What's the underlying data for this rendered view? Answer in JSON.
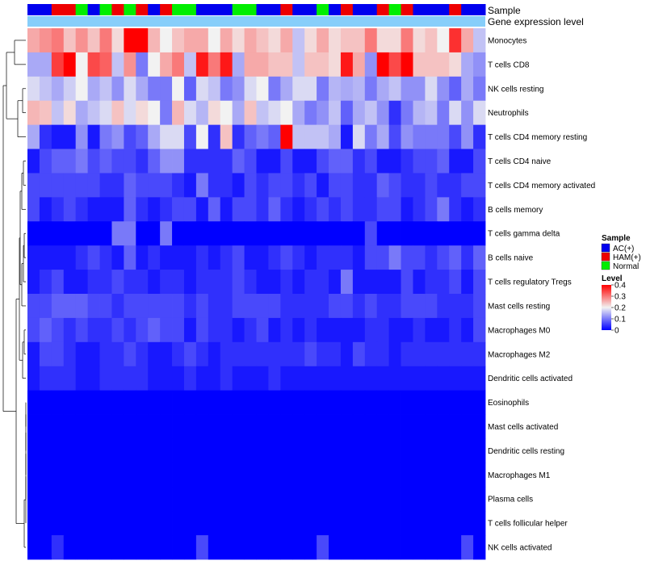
{
  "chart_data": {
    "type": "heatmap",
    "title": "",
    "columns": 38,
    "annotation_tracks": [
      {
        "name": "Sample",
        "label": "Sample"
      },
      {
        "name": "Gene expression level",
        "label": "Gene expression level"
      }
    ],
    "sample_groups": [
      {
        "name": "AC(+)",
        "color": "#0000EE"
      },
      {
        "name": "HAM(+)",
        "color": "#EE0000"
      },
      {
        "name": "Normal",
        "color": "#00EE00"
      }
    ],
    "sample_annotation": [
      "AC(+)",
      "AC(+)",
      "HAM(+)",
      "HAM(+)",
      "Normal",
      "AC(+)",
      "Normal",
      "HAM(+)",
      "Normal",
      "HAM(+)",
      "AC(+)",
      "HAM(+)",
      "Normal",
      "Normal",
      "AC(+)",
      "AC(+)",
      "AC(+)",
      "Normal",
      "Normal",
      "AC(+)",
      "AC(+)",
      "HAM(+)",
      "AC(+)",
      "AC(+)",
      "Normal",
      "AC(+)",
      "HAM(+)",
      "AC(+)",
      "AC(+)",
      "HAM(+)",
      "Normal",
      "HAM(+)",
      "AC(+)",
      "AC(+)",
      "AC(+)",
      "HAM(+)",
      "AC(+)",
      "AC(+)"
    ],
    "expression_annotation_color": "#87CEFA",
    "rows": [
      "Monocytes",
      "T cells CD8",
      "NK cells resting",
      "Neutrophils",
      "T cells CD4 memory resting",
      "T cells CD4 naive",
      "T cells CD4 memory activated",
      "B cells memory",
      "T cells gamma delta",
      "B cells naive",
      "T cells regulatory  Tregs",
      "Mast cells resting",
      "Macrophages M0",
      "Macrophages M2",
      "Dendritic cells activated",
      "Eosinophils",
      "Mast cells activated",
      "Dendritic cells resting",
      "Macrophages M1",
      "Plasma cells",
      "T cells follicular helper",
      "NK cells activated"
    ],
    "values": [
      [
        0.26,
        0.28,
        0.3,
        0.24,
        0.28,
        0.24,
        0.3,
        0.22,
        0.4,
        0.4,
        0.25,
        0.2,
        0.24,
        0.26,
        0.26,
        0.2,
        0.26,
        0.22,
        0.26,
        0.24,
        0.22,
        0.26,
        0.16,
        0.22,
        0.26,
        0.22,
        0.24,
        0.24,
        0.3,
        0.22,
        0.22,
        0.3,
        0.22,
        0.24,
        0.2,
        0.36,
        0.26,
        0.16
      ],
      [
        0.14,
        0.14,
        0.35,
        0.4,
        0.2,
        0.34,
        0.32,
        0.16,
        0.28,
        0.1,
        0.2,
        0.26,
        0.3,
        0.16,
        0.38,
        0.3,
        0.38,
        0.14,
        0.26,
        0.26,
        0.24,
        0.24,
        0.16,
        0.24,
        0.24,
        0.22,
        0.38,
        0.26,
        0.12,
        0.4,
        0.34,
        0.4,
        0.24,
        0.24,
        0.24,
        0.22,
        0.14,
        0.12
      ],
      [
        0.18,
        0.16,
        0.14,
        0.17,
        0.2,
        0.14,
        0.16,
        0.12,
        0.18,
        0.14,
        0.1,
        0.1,
        0.2,
        0.08,
        0.18,
        0.16,
        0.1,
        0.12,
        0.18,
        0.2,
        0.1,
        0.14,
        0.18,
        0.18,
        0.1,
        0.15,
        0.14,
        0.15,
        0.1,
        0.14,
        0.16,
        0.12,
        0.12,
        0.18,
        0.12,
        0.08,
        0.14,
        0.1
      ],
      [
        0.25,
        0.24,
        0.16,
        0.22,
        0.14,
        0.16,
        0.18,
        0.24,
        0.18,
        0.22,
        0.2,
        0.1,
        0.25,
        0.18,
        0.15,
        0.22,
        0.2,
        0.14,
        0.24,
        0.16,
        0.18,
        0.2,
        0.14,
        0.1,
        0.12,
        0.16,
        0.08,
        0.14,
        0.16,
        0.12,
        0.04,
        0.1,
        0.15,
        0.16,
        0.1,
        0.18,
        0.12,
        0.18
      ],
      [
        0.14,
        0.04,
        0.02,
        0.02,
        0.12,
        0.02,
        0.1,
        0.12,
        0.06,
        0.08,
        0.14,
        0.18,
        0.18,
        0.06,
        0.2,
        0.04,
        0.24,
        0.04,
        0.08,
        0.1,
        0.08,
        0.4,
        0.16,
        0.16,
        0.16,
        0.14,
        0.02,
        0.18,
        0.1,
        0.14,
        0.06,
        0.12,
        0.1,
        0.1,
        0.1,
        0.06,
        0.12,
        0.04
      ],
      [
        0.02,
        0.06,
        0.08,
        0.08,
        0.1,
        0.06,
        0.08,
        0.06,
        0.06,
        0.04,
        0.08,
        0.12,
        0.12,
        0.04,
        0.04,
        0.04,
        0.04,
        0.08,
        0.06,
        0.02,
        0.02,
        0.06,
        0.02,
        0.02,
        0.06,
        0.08,
        0.08,
        0.04,
        0.06,
        0.02,
        0.02,
        0.04,
        0.06,
        0.06,
        0.08,
        0.02,
        0.02,
        0.06
      ],
      [
        0.06,
        0.06,
        0.06,
        0.06,
        0.06,
        0.06,
        0.04,
        0.04,
        0.08,
        0.06,
        0.06,
        0.06,
        0.04,
        0.02,
        0.1,
        0.04,
        0.04,
        0.02,
        0.06,
        0.04,
        0.06,
        0.06,
        0.04,
        0.06,
        0.02,
        0.06,
        0.06,
        0.04,
        0.04,
        0.08,
        0.06,
        0.04,
        0.04,
        0.06,
        0.04,
        0.04,
        0.06,
        0.06
      ],
      [
        0.06,
        0.02,
        0.04,
        0.06,
        0.04,
        0.02,
        0.02,
        0.02,
        0.08,
        0.04,
        0.02,
        0.04,
        0.06,
        0.06,
        0.02,
        0.08,
        0.02,
        0.06,
        0.06,
        0.04,
        0.08,
        0.04,
        0.02,
        0.04,
        0.06,
        0.04,
        0.06,
        0.04,
        0.04,
        0.06,
        0.06,
        0.02,
        0.04,
        0.06,
        0.1,
        0.04,
        0.02,
        0.04
      ],
      [
        0.0,
        0.0,
        0.0,
        0.0,
        0.0,
        0.0,
        0.0,
        0.1,
        0.1,
        0.0,
        0.0,
        0.1,
        0.0,
        0.0,
        0.0,
        0.0,
        0.0,
        0.0,
        0.0,
        0.0,
        0.0,
        0.0,
        0.0,
        0.0,
        0.0,
        0.0,
        0.0,
        0.0,
        0.06,
        0.0,
        0.0,
        0.0,
        0.0,
        0.0,
        0.0,
        0.0,
        0.0,
        0.0
      ],
      [
        0.02,
        0.02,
        0.02,
        0.02,
        0.04,
        0.06,
        0.04,
        0.02,
        0.08,
        0.02,
        0.04,
        0.02,
        0.02,
        0.02,
        0.04,
        0.02,
        0.04,
        0.06,
        0.02,
        0.02,
        0.04,
        0.06,
        0.04,
        0.02,
        0.04,
        0.04,
        0.04,
        0.02,
        0.06,
        0.06,
        0.1,
        0.06,
        0.06,
        0.04,
        0.06,
        0.08,
        0.04,
        0.08
      ],
      [
        0.02,
        0.04,
        0.06,
        0.02,
        0.02,
        0.04,
        0.04,
        0.06,
        0.04,
        0.04,
        0.02,
        0.04,
        0.04,
        0.02,
        0.04,
        0.04,
        0.04,
        0.06,
        0.04,
        0.02,
        0.02,
        0.04,
        0.02,
        0.04,
        0.04,
        0.02,
        0.1,
        0.02,
        0.02,
        0.02,
        0.02,
        0.06,
        0.02,
        0.04,
        0.04,
        0.06,
        0.02,
        0.06
      ],
      [
        0.06,
        0.06,
        0.08,
        0.08,
        0.08,
        0.06,
        0.06,
        0.04,
        0.06,
        0.06,
        0.06,
        0.06,
        0.06,
        0.04,
        0.06,
        0.04,
        0.04,
        0.06,
        0.06,
        0.06,
        0.06,
        0.04,
        0.04,
        0.04,
        0.04,
        0.06,
        0.06,
        0.04,
        0.06,
        0.04,
        0.04,
        0.06,
        0.06,
        0.06,
        0.04,
        0.04,
        0.04,
        0.06
      ],
      [
        0.06,
        0.08,
        0.06,
        0.04,
        0.06,
        0.04,
        0.04,
        0.06,
        0.04,
        0.06,
        0.08,
        0.06,
        0.06,
        0.02,
        0.06,
        0.04,
        0.04,
        0.02,
        0.04,
        0.06,
        0.02,
        0.04,
        0.02,
        0.04,
        0.02,
        0.02,
        0.02,
        0.02,
        0.04,
        0.04,
        0.02,
        0.02,
        0.04,
        0.02,
        0.02,
        0.04,
        0.02,
        0.06
      ],
      [
        0.02,
        0.06,
        0.06,
        0.04,
        0.02,
        0.02,
        0.04,
        0.04,
        0.06,
        0.04,
        0.02,
        0.02,
        0.04,
        0.06,
        0.04,
        0.02,
        0.04,
        0.04,
        0.04,
        0.04,
        0.04,
        0.04,
        0.04,
        0.06,
        0.04,
        0.04,
        0.02,
        0.06,
        0.04,
        0.04,
        0.02,
        0.04,
        0.04,
        0.04,
        0.04,
        0.04,
        0.04,
        0.04
      ],
      [
        0.02,
        0.04,
        0.04,
        0.04,
        0.02,
        0.02,
        0.04,
        0.04,
        0.04,
        0.04,
        0.02,
        0.02,
        0.02,
        0.04,
        0.02,
        0.02,
        0.04,
        0.02,
        0.02,
        0.02,
        0.04,
        0.02,
        0.02,
        0.02,
        0.02,
        0.02,
        0.02,
        0.02,
        0.02,
        0.02,
        0.02,
        0.02,
        0.02,
        0.02,
        0.02,
        0.02,
        0.02,
        0.02
      ],
      [
        0.0,
        0.0,
        0.0,
        0.0,
        0.0,
        0.0,
        0.0,
        0.0,
        0.0,
        0.0,
        0.0,
        0.0,
        0.0,
        0.0,
        0.0,
        0.0,
        0.0,
        0.0,
        0.0,
        0.0,
        0.0,
        0.0,
        0.0,
        0.0,
        0.0,
        0.0,
        0.0,
        0.0,
        0.0,
        0.0,
        0.0,
        0.0,
        0.0,
        0.0,
        0.0,
        0.0,
        0.0,
        0.0
      ],
      [
        0.0,
        0.0,
        0.0,
        0.0,
        0.0,
        0.0,
        0.0,
        0.0,
        0.0,
        0.0,
        0.0,
        0.0,
        0.0,
        0.0,
        0.0,
        0.0,
        0.0,
        0.0,
        0.0,
        0.0,
        0.0,
        0.0,
        0.0,
        0.0,
        0.0,
        0.0,
        0.0,
        0.0,
        0.0,
        0.0,
        0.0,
        0.0,
        0.0,
        0.0,
        0.0,
        0.0,
        0.0,
        0.0
      ],
      [
        0.0,
        0.0,
        0.0,
        0.0,
        0.0,
        0.0,
        0.0,
        0.0,
        0.0,
        0.0,
        0.0,
        0.0,
        0.0,
        0.0,
        0.0,
        0.0,
        0.0,
        0.0,
        0.0,
        0.0,
        0.0,
        0.0,
        0.0,
        0.0,
        0.0,
        0.0,
        0.0,
        0.0,
        0.0,
        0.0,
        0.0,
        0.0,
        0.0,
        0.0,
        0.0,
        0.0,
        0.0,
        0.0
      ],
      [
        0.0,
        0.0,
        0.0,
        0.0,
        0.0,
        0.0,
        0.0,
        0.0,
        0.0,
        0.0,
        0.0,
        0.0,
        0.0,
        0.0,
        0.0,
        0.0,
        0.0,
        0.0,
        0.0,
        0.0,
        0.0,
        0.0,
        0.0,
        0.0,
        0.0,
        0.0,
        0.0,
        0.0,
        0.0,
        0.0,
        0.0,
        0.0,
        0.0,
        0.0,
        0.0,
        0.0,
        0.0,
        0.0
      ],
      [
        0.0,
        0.0,
        0.0,
        0.0,
        0.0,
        0.0,
        0.0,
        0.0,
        0.0,
        0.0,
        0.0,
        0.0,
        0.0,
        0.0,
        0.0,
        0.0,
        0.0,
        0.0,
        0.0,
        0.0,
        0.0,
        0.0,
        0.0,
        0.0,
        0.0,
        0.0,
        0.0,
        0.0,
        0.0,
        0.0,
        0.0,
        0.0,
        0.0,
        0.0,
        0.0,
        0.0,
        0.0,
        0.0
      ],
      [
        0.0,
        0.0,
        0.0,
        0.0,
        0.0,
        0.0,
        0.0,
        0.0,
        0.0,
        0.0,
        0.0,
        0.0,
        0.0,
        0.0,
        0.0,
        0.0,
        0.0,
        0.0,
        0.0,
        0.0,
        0.0,
        0.0,
        0.0,
        0.0,
        0.0,
        0.0,
        0.0,
        0.0,
        0.0,
        0.0,
        0.0,
        0.0,
        0.0,
        0.0,
        0.0,
        0.0,
        0.0,
        0.0
      ],
      [
        0.0,
        0.0,
        0.04,
        0.0,
        0.0,
        0.0,
        0.0,
        0.0,
        0.0,
        0.0,
        0.0,
        0.0,
        0.0,
        0.0,
        0.06,
        0.0,
        0.0,
        0.0,
        0.0,
        0.0,
        0.0,
        0.0,
        0.0,
        0.0,
        0.06,
        0.0,
        0.0,
        0.0,
        0.0,
        0.0,
        0.0,
        0.0,
        0.0,
        0.0,
        0.0,
        0.0,
        0.06,
        0.0
      ]
    ],
    "color_scale": {
      "min": 0,
      "max": 0.4,
      "low": "#0000FF",
      "mid": "#F2F2F2",
      "high": "#FF0000",
      "midpoint": 0.2
    },
    "legend": {
      "sample_title": "Sample",
      "level_title": "Level",
      "level_ticks": [
        "0.4",
        "0.3",
        "0.2",
        "0.1",
        "0"
      ],
      "level_tick_values": [
        0.4,
        0.3,
        0.2,
        0.1,
        0
      ],
      "position": "right"
    },
    "row_dendrogram": true
  }
}
